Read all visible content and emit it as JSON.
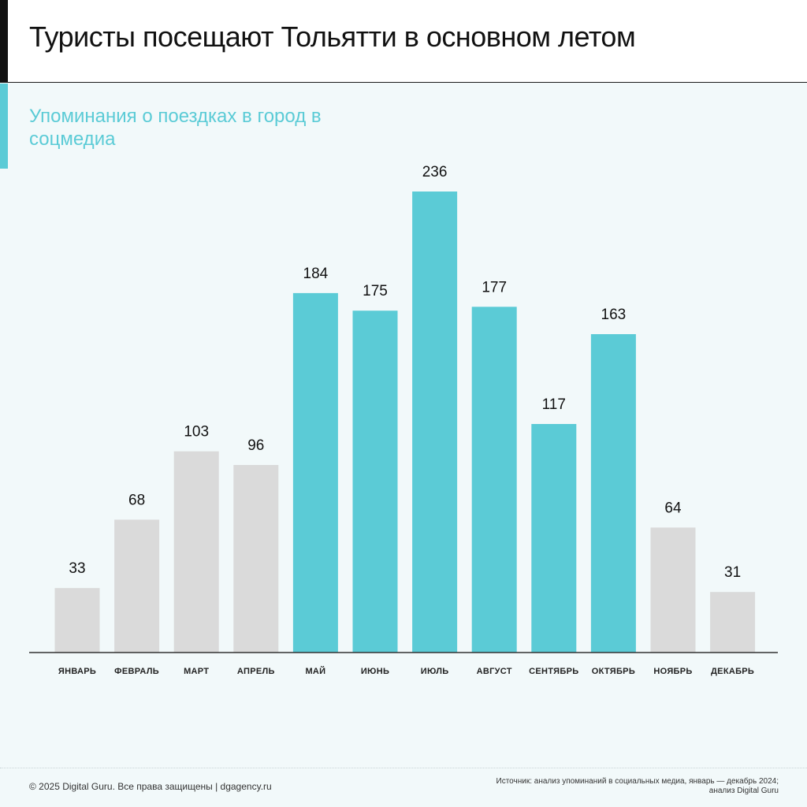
{
  "colors": {
    "highlight": "#5bcbd6",
    "muted": "#dadada",
    "axis": "#333333"
  },
  "chart_data": {
    "type": "bar",
    "title": "Туристы посещают Тольятти в основном летом",
    "subtitle": "Упоминания о поездках в город в соцмедиа",
    "categories": [
      "ЯНВАРЬ",
      "ФЕВРАЛЬ",
      "МАРТ",
      "АПРЕЛЬ",
      "МАЙ",
      "ИЮНЬ",
      "ИЮЛЬ",
      "АВГУСТ",
      "СЕНТЯБРЬ",
      "ОКТЯБРЬ",
      "НОЯБРЬ",
      "ДЕКАБРЬ"
    ],
    "values": [
      33,
      68,
      103,
      96,
      184,
      175,
      236,
      177,
      117,
      163,
      64,
      31
    ],
    "highlighted": [
      false,
      false,
      false,
      false,
      true,
      true,
      true,
      true,
      true,
      true,
      false,
      false
    ],
    "ylim": [
      0,
      236
    ],
    "grid": false,
    "data_labels": true
  },
  "footer": {
    "copyright": "© 2025 Digital Guru. Все права защищены | dgagency.ru",
    "source_line1": "Источник: анализ упоминаний в социальных медиа, январь — декабрь 2024;",
    "source_line2": "анализ Digital Guru"
  }
}
